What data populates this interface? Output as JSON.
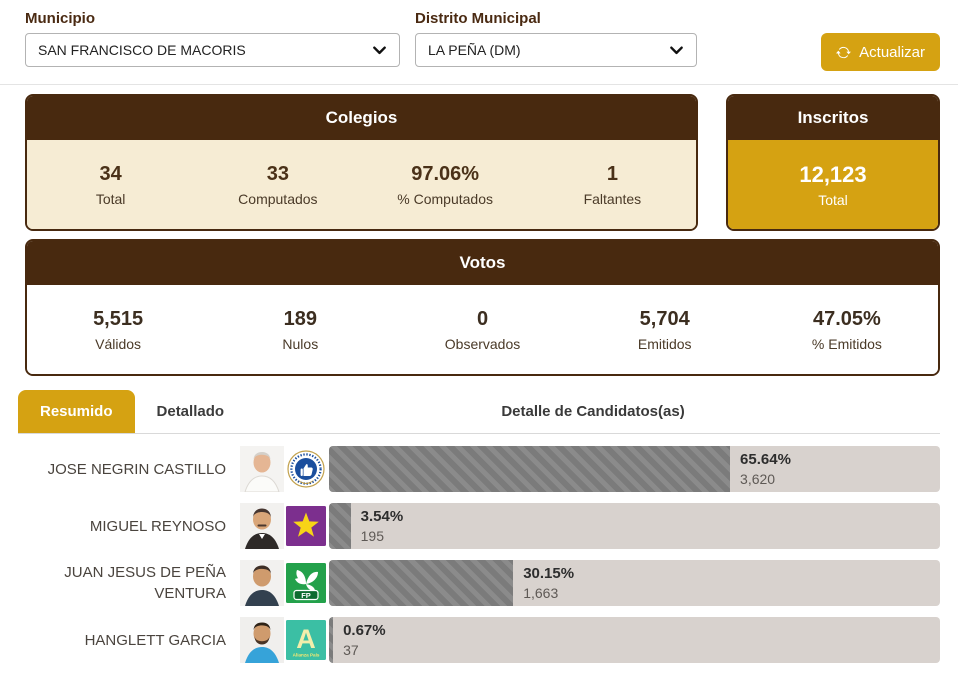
{
  "filters": {
    "municipio": {
      "label": "Municipio",
      "value": "SAN FRANCISCO DE MACORIS"
    },
    "distrito": {
      "label": "Distrito Municipal",
      "value": "LA PEÑA (DM)"
    },
    "refresh_label": "Actualizar"
  },
  "colegios": {
    "title": "Colegios",
    "total": {
      "value": "34",
      "label": "Total"
    },
    "computados": {
      "value": "33",
      "label": "Computados"
    },
    "pct_computados": {
      "value": "97.06%",
      "label": "% Computados"
    },
    "faltantes": {
      "value": "1",
      "label": "Faltantes"
    }
  },
  "inscritos": {
    "title": "Inscritos",
    "total": {
      "value": "12,123",
      "label": "Total"
    }
  },
  "votos": {
    "title": "Votos",
    "validos": {
      "value": "5,515",
      "label": "Válidos"
    },
    "nulos": {
      "value": "189",
      "label": "Nulos"
    },
    "observados": {
      "value": "0",
      "label": "Observados"
    },
    "emitidos": {
      "value": "5,704",
      "label": "Emitidos"
    },
    "pct_emitidos": {
      "value": "47.05%",
      "label": "% Emitidos"
    }
  },
  "tabs": {
    "resumido": "Resumido",
    "detallado": "Detallado",
    "section_title": "Detalle de Candidatos(as)"
  },
  "candidates": [
    {
      "name": "JOSE NEGRIN CASTILLO",
      "party": "PRM",
      "pct": 65.64,
      "pct_label": "65.64%",
      "votes": "3,620"
    },
    {
      "name": "MIGUEL REYNOSO",
      "party": "PLD",
      "pct": 3.54,
      "pct_label": "3.54%",
      "votes": "195"
    },
    {
      "name": "JUAN JESUS DE PEÑA VENTURA",
      "party": "FP",
      "pct": 30.15,
      "pct_label": "30.15%",
      "votes": "1,663"
    },
    {
      "name": "HANGLETT GARCIA",
      "party": "Alianza País",
      "party_letter": "A",
      "pct": 0.67,
      "pct_label": "0.67%",
      "votes": "37"
    }
  ],
  "colors": {
    "brown": "#48290f",
    "gold": "#d5a212",
    "beige": "#f6ecd4",
    "bar_track": "#d8d2ce",
    "bar_hatch_dark": "#7b7b7b",
    "bar_hatch_light": "#8b8b8b"
  }
}
